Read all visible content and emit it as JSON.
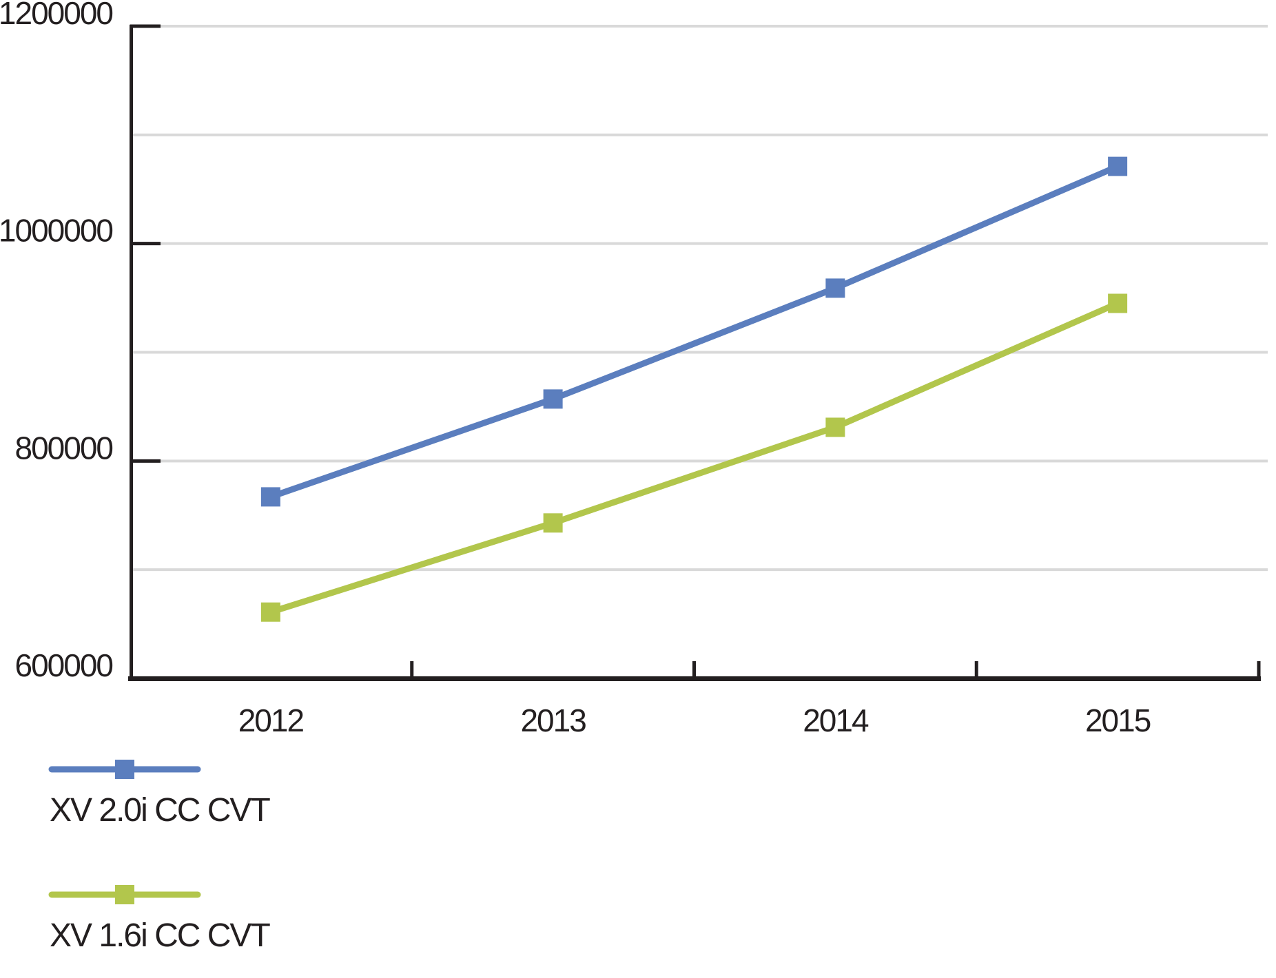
{
  "chart_data": {
    "type": "line",
    "categories": [
      "2012",
      "2013",
      "2014",
      "2015"
    ],
    "series": [
      {
        "name": "XV 2.0i CC CVT",
        "color": "#5b7ebe",
        "values": [
          767000,
          857000,
          959000,
          1071000
        ]
      },
      {
        "name": "XV 1.6i CC CVT",
        "color": "#b2c64c",
        "values": [
          661000,
          743000,
          831000,
          945000
        ]
      }
    ],
    "title": "",
    "xlabel": "",
    "ylabel": "",
    "ylim": [
      600000,
      1200000
    ],
    "ytick_step": 200000,
    "grid_step": 100000,
    "ytick_labels": [
      "600000",
      "800000",
      "1000000",
      "1200000"
    ],
    "grid": true,
    "marker": "square",
    "legend_position": "bottom-left",
    "legend": [
      "XV 2.0i CC CVT",
      "XV 1.6i CC CVT"
    ]
  },
  "colors": {
    "axis": "#231f20",
    "grid": "#d9d9d9",
    "text": "#231f20",
    "background": "#ffffff"
  }
}
